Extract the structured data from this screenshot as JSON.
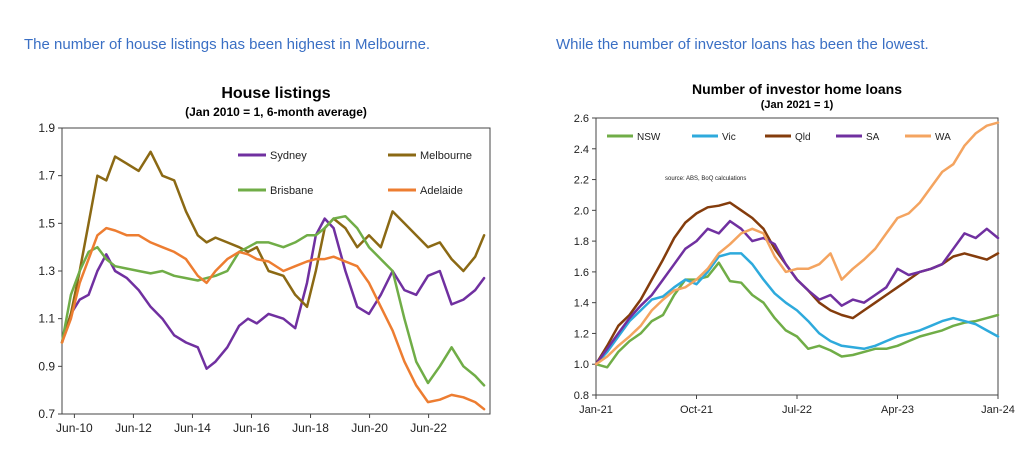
{
  "captions": {
    "left": "The number of house listings has been highest in Melbourne.",
    "right": "While the number of investor loans has been the lowest."
  },
  "chart_data": [
    {
      "type": "line",
      "title": "House listings",
      "subtitle": "(Jan 2010 = 1, 6-month average)",
      "x_range": [
        2010.0,
        2024.5
      ],
      "ylim": [
        0.7,
        1.9
      ],
      "y_ticks": [
        0.7,
        0.9,
        1.1,
        1.3,
        1.5,
        1.7,
        1.9
      ],
      "y_tick_labels": [
        "0.7",
        "0.9",
        "1.1",
        "1.3",
        "1.5",
        "1.7",
        "1.9"
      ],
      "x_ticks": [
        2010.42,
        2012.42,
        2014.42,
        2016.42,
        2018.42,
        2020.42,
        2022.42
      ],
      "x_tick_labels": [
        "Jun-10",
        "Jun-12",
        "Jun-14",
        "Jun-16",
        "Jun-18",
        "Jun-20",
        "Jun-22"
      ],
      "legend": "top-right",
      "series": [
        {
          "name": "Sydney",
          "color": "#7030a0",
          "x": [
            2010.0,
            2010.3,
            2010.6,
            2010.9,
            2011.2,
            2011.5,
            2011.8,
            2012.2,
            2012.6,
            2013.0,
            2013.4,
            2013.8,
            2014.2,
            2014.6,
            2014.9,
            2015.2,
            2015.6,
            2016.0,
            2016.3,
            2016.6,
            2017.0,
            2017.5,
            2017.9,
            2018.3,
            2018.6,
            2018.9,
            2019.2,
            2019.6,
            2020.0,
            2020.4,
            2020.8,
            2021.2,
            2021.6,
            2022.0,
            2022.4,
            2022.8,
            2023.2,
            2023.6,
            2024.0,
            2024.3
          ],
          "values": [
            1.0,
            1.12,
            1.18,
            1.2,
            1.3,
            1.37,
            1.3,
            1.27,
            1.22,
            1.15,
            1.1,
            1.03,
            1.0,
            0.98,
            0.89,
            0.92,
            0.98,
            1.07,
            1.1,
            1.08,
            1.12,
            1.1,
            1.06,
            1.25,
            1.45,
            1.52,
            1.48,
            1.3,
            1.15,
            1.12,
            1.2,
            1.3,
            1.22,
            1.2,
            1.28,
            1.3,
            1.16,
            1.18,
            1.22,
            1.27
          ]
        },
        {
          "name": "Melbourne",
          "color": "#8b6914",
          "x": [
            2010.0,
            2010.3,
            2010.6,
            2010.9,
            2011.2,
            2011.5,
            2011.8,
            2012.2,
            2012.6,
            2013.0,
            2013.4,
            2013.8,
            2014.2,
            2014.6,
            2014.9,
            2015.2,
            2015.6,
            2016.0,
            2016.3,
            2016.6,
            2017.0,
            2017.5,
            2017.9,
            2018.3,
            2018.6,
            2018.9,
            2019.2,
            2019.6,
            2020.0,
            2020.4,
            2020.8,
            2021.2,
            2021.6,
            2022.0,
            2022.4,
            2022.8,
            2023.2,
            2023.6,
            2024.0,
            2024.3
          ],
          "values": [
            1.0,
            1.12,
            1.3,
            1.5,
            1.7,
            1.68,
            1.78,
            1.75,
            1.72,
            1.8,
            1.7,
            1.68,
            1.55,
            1.45,
            1.42,
            1.44,
            1.42,
            1.4,
            1.38,
            1.4,
            1.3,
            1.28,
            1.2,
            1.15,
            1.3,
            1.48,
            1.52,
            1.48,
            1.4,
            1.45,
            1.4,
            1.55,
            1.5,
            1.45,
            1.4,
            1.42,
            1.35,
            1.3,
            1.36,
            1.45
          ]
        },
        {
          "name": "Brisbane",
          "color": "#70ad47",
          "x": [
            2010.0,
            2010.3,
            2010.6,
            2010.9,
            2011.2,
            2011.5,
            2011.8,
            2012.2,
            2012.6,
            2013.0,
            2013.4,
            2013.8,
            2014.2,
            2014.6,
            2014.9,
            2015.2,
            2015.6,
            2016.0,
            2016.3,
            2016.6,
            2017.0,
            2017.5,
            2017.9,
            2018.3,
            2018.6,
            2018.9,
            2019.2,
            2019.6,
            2020.0,
            2020.4,
            2020.8,
            2021.2,
            2021.6,
            2022.0,
            2022.4,
            2022.8,
            2023.2,
            2023.6,
            2024.0,
            2024.3
          ],
          "values": [
            1.0,
            1.2,
            1.3,
            1.38,
            1.4,
            1.35,
            1.32,
            1.31,
            1.3,
            1.29,
            1.3,
            1.28,
            1.27,
            1.26,
            1.27,
            1.28,
            1.3,
            1.38,
            1.4,
            1.42,
            1.42,
            1.4,
            1.42,
            1.45,
            1.45,
            1.48,
            1.52,
            1.53,
            1.48,
            1.4,
            1.35,
            1.3,
            1.1,
            0.92,
            0.83,
            0.9,
            0.98,
            0.9,
            0.86,
            0.82
          ]
        },
        {
          "name": "Adelaide",
          "color": "#ed7d31",
          "x": [
            2010.0,
            2010.3,
            2010.6,
            2010.9,
            2011.2,
            2011.5,
            2011.8,
            2012.2,
            2012.6,
            2013.0,
            2013.4,
            2013.8,
            2014.2,
            2014.6,
            2014.9,
            2015.2,
            2015.6,
            2016.0,
            2016.3,
            2016.6,
            2017.0,
            2017.5,
            2017.9,
            2018.3,
            2018.6,
            2018.9,
            2019.2,
            2019.6,
            2020.0,
            2020.4,
            2020.8,
            2021.2,
            2021.6,
            2022.0,
            2022.4,
            2022.8,
            2023.2,
            2023.6,
            2024.0,
            2024.3
          ],
          "values": [
            1.0,
            1.1,
            1.25,
            1.35,
            1.45,
            1.48,
            1.47,
            1.45,
            1.45,
            1.42,
            1.4,
            1.38,
            1.35,
            1.28,
            1.25,
            1.3,
            1.35,
            1.38,
            1.37,
            1.35,
            1.34,
            1.3,
            1.32,
            1.34,
            1.35,
            1.35,
            1.36,
            1.34,
            1.32,
            1.25,
            1.15,
            1.05,
            0.92,
            0.82,
            0.75,
            0.76,
            0.78,
            0.77,
            0.75,
            0.72
          ]
        }
      ]
    },
    {
      "type": "line",
      "title": "Number of investor home loans",
      "subtitle": "(Jan 2021 = 1)",
      "annotation": "source: ABS, BoQ calculations",
      "x_range": [
        0,
        36
      ],
      "ylim": [
        0.8,
        2.6
      ],
      "y_ticks": [
        0.8,
        1.0,
        1.2,
        1.4,
        1.6,
        1.8,
        2.0,
        2.2,
        2.4,
        2.6
      ],
      "y_tick_labels": [
        "0.8",
        "1.0",
        "1.2",
        "1.4",
        "1.6",
        "1.8",
        "2.0",
        "2.2",
        "2.4",
        "2.6"
      ],
      "x_ticks": [
        0,
        9,
        18,
        27,
        36
      ],
      "x_tick_labels": [
        "Jan-21",
        "Oct-21",
        "Jul-22",
        "Apr-23",
        "Jan-24"
      ],
      "legend": "top",
      "series": [
        {
          "name": "NSW",
          "color": "#70ad47",
          "x": [
            0,
            1,
            2,
            3,
            4,
            5,
            6,
            7,
            8,
            9,
            10,
            11,
            12,
            13,
            14,
            15,
            16,
            17,
            18,
            19,
            20,
            21,
            22,
            23,
            24,
            25,
            26,
            27,
            28,
            29,
            30,
            31,
            32,
            33,
            34,
            35,
            36
          ],
          "values": [
            1.0,
            0.98,
            1.08,
            1.15,
            1.2,
            1.28,
            1.32,
            1.45,
            1.55,
            1.55,
            1.57,
            1.66,
            1.54,
            1.53,
            1.45,
            1.4,
            1.3,
            1.22,
            1.18,
            1.1,
            1.12,
            1.09,
            1.05,
            1.06,
            1.08,
            1.1,
            1.1,
            1.12,
            1.15,
            1.18,
            1.2,
            1.22,
            1.25,
            1.27,
            1.28,
            1.3,
            1.32
          ]
        },
        {
          "name": "Vic",
          "color": "#2eaadc",
          "x": [
            0,
            1,
            2,
            3,
            4,
            5,
            6,
            7,
            8,
            9,
            10,
            11,
            12,
            13,
            14,
            15,
            16,
            17,
            18,
            19,
            20,
            21,
            22,
            23,
            24,
            25,
            26,
            27,
            28,
            29,
            30,
            31,
            32,
            33,
            34,
            35,
            36
          ],
          "values": [
            1.0,
            1.08,
            1.18,
            1.28,
            1.35,
            1.42,
            1.44,
            1.5,
            1.55,
            1.52,
            1.6,
            1.7,
            1.72,
            1.72,
            1.65,
            1.55,
            1.46,
            1.4,
            1.35,
            1.28,
            1.2,
            1.15,
            1.12,
            1.11,
            1.1,
            1.12,
            1.15,
            1.18,
            1.2,
            1.22,
            1.25,
            1.28,
            1.3,
            1.28,
            1.26,
            1.22,
            1.18
          ]
        },
        {
          "name": "Qld",
          "color": "#843c0c",
          "x": [
            0,
            1,
            2,
            3,
            4,
            5,
            6,
            7,
            8,
            9,
            10,
            11,
            12,
            13,
            14,
            15,
            16,
            17,
            18,
            19,
            20,
            21,
            22,
            23,
            24,
            25,
            26,
            27,
            28,
            29,
            30,
            31,
            32,
            33,
            34,
            35,
            36
          ],
          "values": [
            1.0,
            1.12,
            1.25,
            1.32,
            1.42,
            1.55,
            1.68,
            1.82,
            1.92,
            1.98,
            2.02,
            2.03,
            2.05,
            2.0,
            1.95,
            1.88,
            1.75,
            1.65,
            1.55,
            1.48,
            1.4,
            1.35,
            1.32,
            1.3,
            1.35,
            1.4,
            1.45,
            1.5,
            1.55,
            1.6,
            1.62,
            1.65,
            1.7,
            1.72,
            1.7,
            1.68,
            1.72
          ]
        },
        {
          "name": "SA",
          "color": "#7030a0",
          "x": [
            0,
            1,
            2,
            3,
            4,
            5,
            6,
            7,
            8,
            9,
            10,
            11,
            12,
            13,
            14,
            15,
            16,
            17,
            18,
            19,
            20,
            21,
            22,
            23,
            24,
            25,
            26,
            27,
            28,
            29,
            30,
            31,
            32,
            33,
            34,
            35,
            36
          ],
          "values": [
            1.0,
            1.1,
            1.2,
            1.3,
            1.38,
            1.45,
            1.55,
            1.65,
            1.75,
            1.8,
            1.88,
            1.85,
            1.93,
            1.88,
            1.8,
            1.82,
            1.78,
            1.65,
            1.55,
            1.48,
            1.42,
            1.45,
            1.38,
            1.42,
            1.4,
            1.45,
            1.5,
            1.62,
            1.58,
            1.6,
            1.62,
            1.65,
            1.75,
            1.85,
            1.82,
            1.88,
            1.82
          ]
        },
        {
          "name": "WA",
          "color": "#f4a460",
          "x": [
            0,
            1,
            2,
            3,
            4,
            5,
            6,
            7,
            8,
            9,
            10,
            11,
            12,
            13,
            14,
            15,
            16,
            17,
            18,
            19,
            20,
            21,
            22,
            23,
            24,
            25,
            26,
            27,
            28,
            29,
            30,
            31,
            32,
            33,
            34,
            35,
            36
          ],
          "values": [
            1.0,
            1.05,
            1.12,
            1.18,
            1.25,
            1.35,
            1.42,
            1.48,
            1.5,
            1.55,
            1.62,
            1.72,
            1.78,
            1.85,
            1.88,
            1.85,
            1.7,
            1.6,
            1.62,
            1.62,
            1.65,
            1.72,
            1.55,
            1.62,
            1.68,
            1.75,
            1.85,
            1.95,
            1.98,
            2.05,
            2.15,
            2.25,
            2.3,
            2.42,
            2.5,
            2.55,
            2.57
          ]
        }
      ]
    }
  ]
}
